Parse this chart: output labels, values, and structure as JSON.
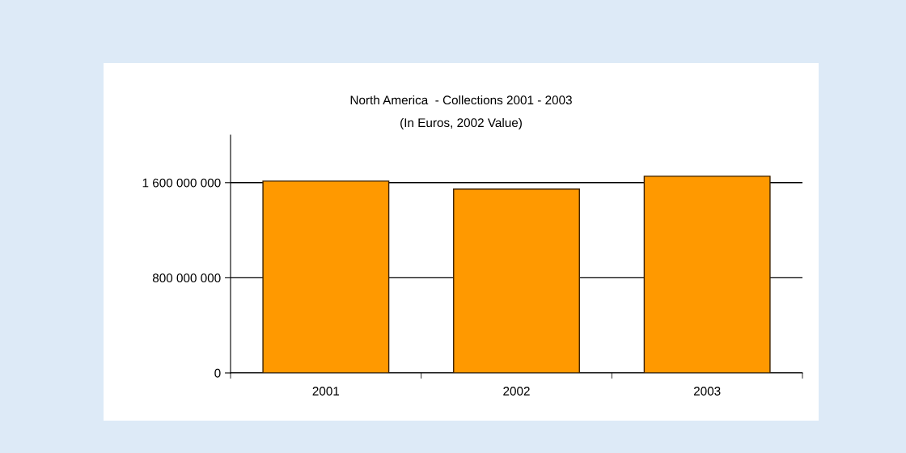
{
  "chart_data": {
    "type": "bar",
    "title": "North America  - Collections 2001 - 2003",
    "subtitle": "(In Euros, 2002 Value)",
    "categories": [
      "2001",
      "2002",
      "2003"
    ],
    "values": [
      1613000000,
      1546000000,
      1654000000
    ],
    "color": "#ff9900",
    "ylim": [
      0,
      2000000000
    ],
    "yticks": [
      {
        "value": 0,
        "label": "0"
      },
      {
        "value": 800000000,
        "label": "800 000 000"
      },
      {
        "value": 1600000000,
        "label": "1 600 000 000"
      }
    ],
    "grid": "y"
  }
}
